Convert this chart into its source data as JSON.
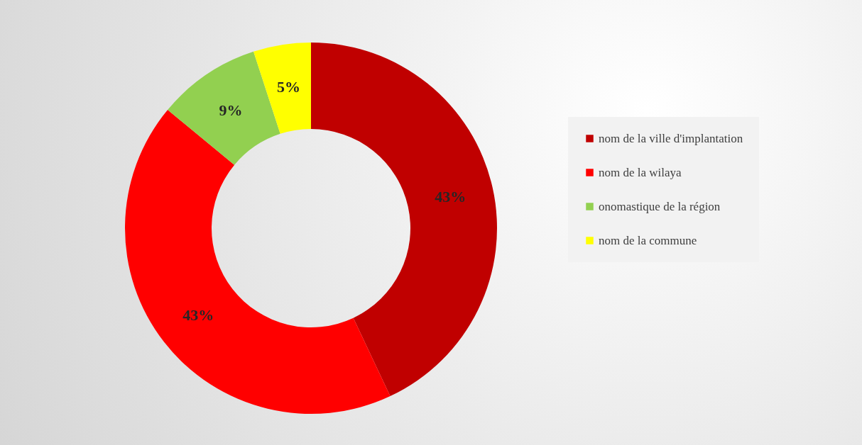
{
  "chart_data": {
    "type": "donut",
    "categories": [
      "nom de la ville d'implantation",
      "nom de la wilaya",
      "onomastique de la région",
      "nom de la commune"
    ],
    "values": [
      43,
      43,
      9,
      5
    ],
    "colors": [
      "#c00000",
      "#ff0000",
      "#92d050",
      "#ffff00"
    ],
    "value_labels": [
      "43%",
      "43%",
      "9%",
      "5%"
    ],
    "legend": "right"
  }
}
